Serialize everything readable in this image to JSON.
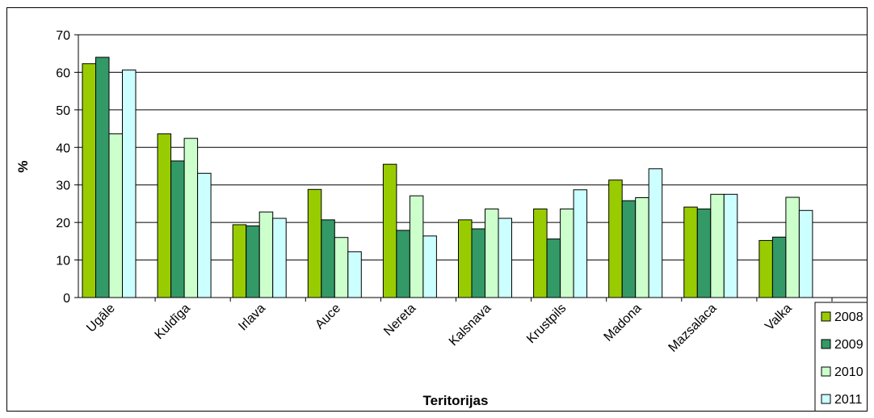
{
  "chart_data": {
    "type": "bar",
    "categories": [
      "Ugāle",
      "Kuldīga",
      "Irlava",
      "Auce",
      "Nereta",
      "Kalsnava",
      "Krustpils",
      "Madona",
      "Mazsalaca",
      "Valka"
    ],
    "series": [
      {
        "name": "2008",
        "color": "#99cc00",
        "values": [
          62.3,
          43.6,
          19.4,
          28.8,
          35.5,
          20.7,
          23.6,
          31.3,
          24.1,
          15.2
        ]
      },
      {
        "name": "2009",
        "color": "#339966",
        "values": [
          64.0,
          36.4,
          19.1,
          20.7,
          17.9,
          18.3,
          15.6,
          25.8,
          23.6,
          16.1
        ]
      },
      {
        "name": "2010",
        "color": "#ccffcc",
        "values": [
          43.6,
          42.4,
          22.8,
          16.0,
          27.1,
          23.6,
          23.6,
          26.6,
          27.5,
          26.7
        ]
      },
      {
        "name": "2011",
        "color": "#ccffff",
        "values": [
          60.6,
          33.1,
          21.1,
          12.2,
          16.4,
          21.1,
          28.7,
          34.3,
          27.5,
          23.2
        ]
      }
    ],
    "xlabel": "Teritorijas",
    "ylabel": "%",
    "ylim": [
      0,
      70
    ],
    "yticks": [
      0,
      10,
      20,
      30,
      40,
      50,
      60,
      70
    ],
    "grid": true,
    "legend_position": "right"
  }
}
